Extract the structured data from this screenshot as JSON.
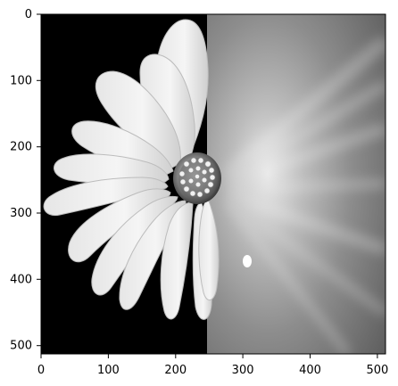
{
  "figure": {
    "background": "#ffffff",
    "axis_color": "#000000"
  },
  "image": {
    "content": "grayscale photograph of a white daisy",
    "colormap": "gray",
    "extent_x": [
      0,
      512
    ],
    "extent_y": [
      512,
      0
    ]
  },
  "x_axis": {
    "ticks": [
      {
        "value": 0,
        "label": "0"
      },
      {
        "value": 100,
        "label": "100"
      },
      {
        "value": 200,
        "label": "200"
      },
      {
        "value": 300,
        "label": "300"
      },
      {
        "value": 400,
        "label": "400"
      },
      {
        "value": 500,
        "label": "500"
      }
    ]
  },
  "y_axis": {
    "ticks": [
      {
        "value": 0,
        "label": "0"
      },
      {
        "value": 100,
        "label": "100"
      },
      {
        "value": 200,
        "label": "200"
      },
      {
        "value": 300,
        "label": "300"
      },
      {
        "value": 400,
        "label": "400"
      },
      {
        "value": 500,
        "label": "500"
      }
    ]
  }
}
